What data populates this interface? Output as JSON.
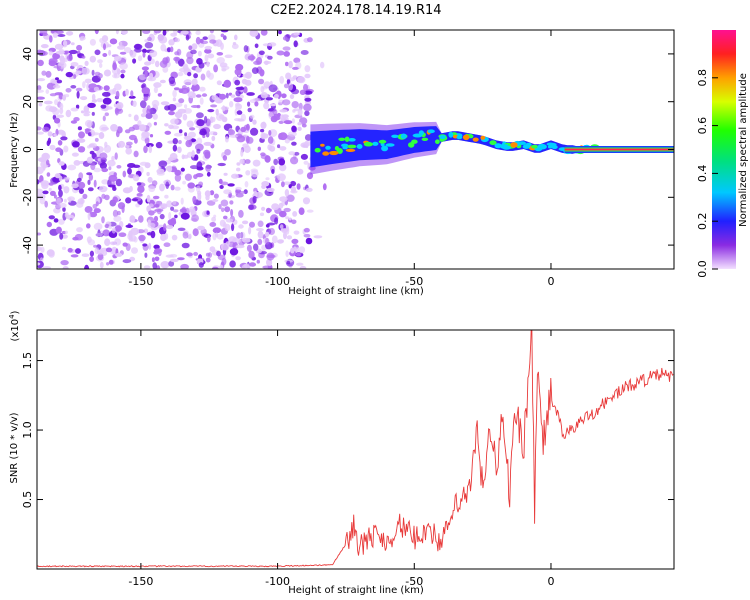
{
  "title": "C2E2.2024.178.14.19.R14",
  "colors": {
    "snr_line": "#e83a3a",
    "cloud": "#7a1fe6",
    "axis": "#000000"
  },
  "chart_data": [
    {
      "type": "heatmap",
      "name": "spectrogram",
      "xlabel": "Height of straight line (km)",
      "ylabel": "Frequency (Hz)",
      "xlim": [
        -188,
        45
      ],
      "ylim": [
        -50,
        50
      ],
      "xticks": [
        -150,
        -100,
        -50,
        0
      ],
      "xtick_labels": [
        "-150",
        "-100",
        "-50",
        "0"
      ],
      "yticks": [
        -40,
        -20,
        0,
        20,
        40
      ],
      "ytick_labels": [
        "-40",
        "-20",
        "0",
        "20",
        "40"
      ],
      "colorbar": {
        "label": "Normalized spectral amplitude",
        "range": [
          0,
          1
        ],
        "ticks": [
          0.0,
          0.2,
          0.4,
          0.6,
          0.8
        ],
        "tick_labels": [
          "0.0",
          "0.2",
          "0.4",
          "0.6",
          "0.8"
        ]
      },
      "noise_region": {
        "x": [
          -188,
          -88
        ],
        "y": [
          -50,
          50
        ]
      },
      "signal_trace": [
        {
          "x": -88,
          "y": 0
        },
        {
          "x": -80,
          "y": 1
        },
        {
          "x": -70,
          "y": 2
        },
        {
          "x": -60,
          "y": 2
        },
        {
          "x": -50,
          "y": 4
        },
        {
          "x": -40,
          "y": 5
        },
        {
          "x": -35,
          "y": 6
        },
        {
          "x": -30,
          "y": 5
        },
        {
          "x": -25,
          "y": 4
        },
        {
          "x": -20,
          "y": 2
        },
        {
          "x": -15,
          "y": 1
        },
        {
          "x": -10,
          "y": 2
        },
        {
          "x": -5,
          "y": 0
        },
        {
          "x": 0,
          "y": 2
        },
        {
          "x": 5,
          "y": 0
        },
        {
          "x": 20,
          "y": 0
        },
        {
          "x": 45,
          "y": 0
        }
      ]
    },
    {
      "type": "line",
      "name": "snr",
      "xlabel": "Height of straight line (km)",
      "ylabel": "SNR (10 * v/v)",
      "y_multiplier": "(x10",
      "y_multiplier_exp": "4",
      "y_multiplier_close": ")",
      "xlim": [
        -188,
        45
      ],
      "ylim": [
        0,
        1.72
      ],
      "xticks": [
        -150,
        -100,
        -50,
        0
      ],
      "xtick_labels": [
        "-150",
        "-100",
        "-50",
        "0"
      ],
      "yticks": [
        0.5,
        1.0,
        1.5
      ],
      "ytick_labels": [
        "0.5",
        "1.0",
        "1.5"
      ],
      "series": [
        {
          "name": "SNR",
          "x": [
            -188,
            -150,
            -100,
            -80,
            -75,
            -72,
            -70,
            -65,
            -60,
            -55,
            -50,
            -45,
            -40,
            -35,
            -30,
            -27,
            -25,
            -22,
            -20,
            -18,
            -15,
            -13,
            -10,
            -8,
            -7,
            -6,
            -5,
            -3,
            0,
            5,
            10,
            15,
            20,
            25,
            30,
            35,
            40,
            45
          ],
          "values": [
            0.02,
            0.02,
            0.02,
            0.03,
            0.18,
            0.32,
            0.15,
            0.25,
            0.2,
            0.32,
            0.22,
            0.3,
            0.18,
            0.45,
            0.55,
            0.95,
            0.6,
            1.0,
            0.75,
            1.05,
            0.55,
            1.15,
            0.9,
            1.4,
            1.72,
            0.4,
            1.45,
            0.9,
            1.25,
            0.95,
            1.05,
            1.12,
            1.2,
            1.28,
            1.33,
            1.37,
            1.4,
            1.38
          ]
        }
      ]
    }
  ]
}
